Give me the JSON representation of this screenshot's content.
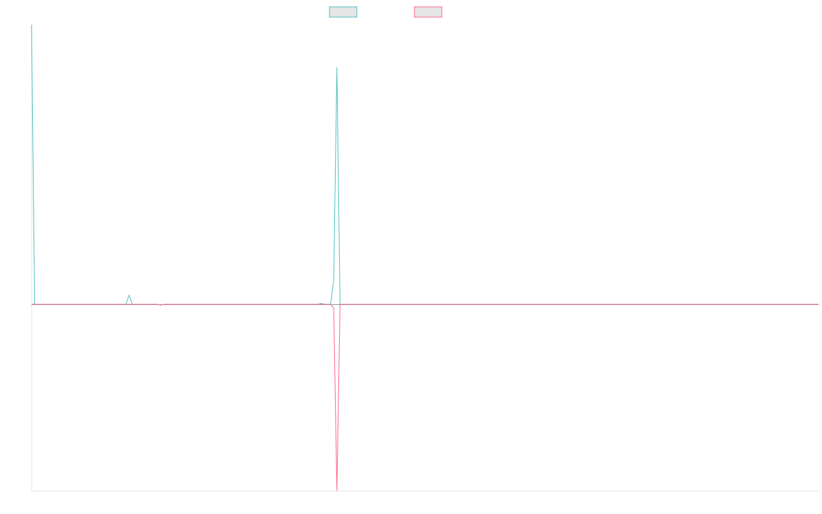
{
  "chart_data": {
    "type": "line",
    "title": "",
    "xlabel": "",
    "ylabel": "",
    "grid": false,
    "legend_placement": "top-center",
    "colors": {
      "series_1": "#4bc0c0",
      "series_2": "#ff6384",
      "axis": "#e5e5e5",
      "zero_line": "#7a9aa0"
    },
    "xlim": [
      0,
      250
    ],
    "ylim": [
      -1.0,
      1.5
    ],
    "series": [
      {
        "color": "#4bc0c0",
        "points": [
          [
            0,
            1.5
          ],
          [
            1,
            0.0
          ],
          [
            30,
            0.0
          ],
          [
            31,
            0.05
          ],
          [
            32,
            0.0
          ],
          [
            40,
            0.0
          ],
          [
            41,
            -0.005
          ],
          [
            42,
            0.0
          ],
          [
            91,
            0.0
          ],
          [
            92,
            0.005
          ],
          [
            93,
            0.0
          ],
          [
            95,
            0.0
          ],
          [
            96,
            0.13
          ],
          [
            97,
            1.27
          ],
          [
            98,
            0.0
          ],
          [
            250,
            0.0
          ]
        ]
      },
      {
        "color": "#ff6384",
        "points": [
          [
            0,
            0.0
          ],
          [
            40,
            0.0
          ],
          [
            41,
            -0.005
          ],
          [
            42,
            0.0
          ],
          [
            95,
            0.0
          ],
          [
            96,
            -0.02
          ],
          [
            97,
            -1.0
          ],
          [
            98,
            0.0
          ],
          [
            250,
            0.0
          ]
        ]
      }
    ]
  }
}
